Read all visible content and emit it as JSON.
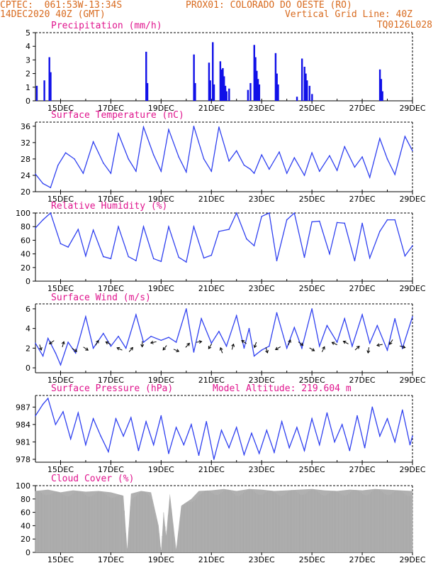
{
  "header": {
    "left_line1": "CPTEC:  061:53W-13:34S",
    "station": "PROX01: COLORADO DO OESTE (RO)",
    "left_line2": "14DEC2020 40Z (GMT)",
    "grid_note": "Vertical Grid Line: 40Z",
    "run_id": "TQ0126L028"
  },
  "colors": {
    "header": "#d86a1e",
    "title": "#e0158e",
    "bar": "#1010e8",
    "line": "#2f40f0",
    "cloud": "#b0b0b0"
  },
  "chart_data": [
    {
      "id": "precipitation",
      "type": "bar",
      "title": "Precipitation (mm/h)",
      "ylim": [
        0,
        5
      ],
      "yticks": [
        0,
        1,
        2,
        3,
        4,
        5
      ],
      "xlim": [
        14,
        29
      ],
      "xticks": [
        "15DEC",
        "17DEC",
        "19DEC",
        "21DEC",
        "23DEC",
        "25DEC",
        "27DEC",
        "29DEC"
      ],
      "series": [
        {
          "x": [
            14.05,
            14.35,
            14.55,
            14.6,
            18.4,
            18.45,
            20.3,
            20.35,
            20.9,
            20.95,
            21.05,
            21.1,
            21.35,
            21.4,
            21.45,
            21.5,
            21.55,
            21.6,
            21.7,
            22.45,
            22.55,
            22.7,
            22.75,
            22.8,
            22.85,
            22.9,
            23.55,
            23.6,
            23.65,
            24.4,
            24.6,
            24.7,
            24.75,
            24.8,
            24.9,
            25.0,
            27.7,
            27.75,
            27.8
          ],
          "values": [
            1.1,
            1.5,
            3.2,
            2.1,
            3.6,
            1.3,
            3.4,
            1.3,
            2.8,
            1.5,
            4.3,
            1.2,
            2.9,
            2.3,
            2.4,
            1.8,
            1.1,
            0.7,
            0.9,
            0.8,
            1.3,
            4.1,
            3.2,
            2.2,
            1.6,
            1.2,
            3.5,
            2.0,
            1.2,
            0.3,
            3.1,
            2.5,
            2.0,
            1.5,
            1.1,
            0.5,
            2.3,
            1.6,
            0.7
          ]
        }
      ]
    },
    {
      "id": "temperature",
      "type": "line",
      "title": "Surface Temperature (nC)",
      "ylim": [
        20,
        37
      ],
      "yticks": [
        20,
        24,
        28,
        32,
        36
      ],
      "xlim": [
        14,
        29
      ],
      "xticks": [
        "15DEC",
        "17DEC",
        "19DEC",
        "21DEC",
        "23DEC",
        "25DEC",
        "27DEC",
        "29DEC"
      ],
      "series": [
        {
          "x": [
            14.0,
            14.3,
            14.6,
            14.9,
            15.2,
            15.55,
            15.9,
            16.3,
            16.7,
            17.0,
            17.3,
            17.7,
            18.0,
            18.3,
            18.7,
            19.0,
            19.3,
            19.7,
            20.0,
            20.3,
            20.7,
            21.0,
            21.3,
            21.7,
            22.0,
            22.3,
            22.55,
            22.7,
            23.0,
            23.3,
            23.7,
            24.0,
            24.3,
            24.7,
            25.0,
            25.3,
            25.7,
            26.0,
            26.3,
            26.7,
            27.0,
            27.3,
            27.7,
            28.0,
            28.3,
            28.7,
            29.0
          ],
          "values": [
            24.3,
            22.0,
            21.0,
            26.5,
            29.5,
            28.0,
            24.5,
            32.2,
            27.0,
            24.5,
            34.2,
            28.0,
            25.0,
            35.8,
            29.0,
            25.0,
            35.2,
            28.5,
            24.8,
            36.0,
            28.0,
            25.0,
            35.8,
            27.5,
            30.0,
            26.5,
            25.5,
            24.5,
            29.0,
            25.5,
            29.7,
            24.5,
            28.3,
            24.0,
            29.5,
            25.0,
            28.8,
            25.2,
            31.0,
            26.0,
            28.5,
            23.5,
            33.0,
            28.0,
            24.2,
            33.5,
            30.0
          ]
        }
      ]
    },
    {
      "id": "humidity",
      "type": "line",
      "title": "Relative Humidity (%)",
      "ylim": [
        0,
        100
      ],
      "yticks": [
        0,
        20,
        40,
        60,
        80,
        100
      ],
      "xlim": [
        14,
        29
      ],
      "xticks": [
        "15DEC",
        "17DEC",
        "19DEC",
        "21DEC",
        "23DEC",
        "25DEC",
        "27DEC",
        "29DEC"
      ],
      "series": [
        {
          "x": [
            14.0,
            14.3,
            14.6,
            15.0,
            15.3,
            15.7,
            16.0,
            16.3,
            16.7,
            17.0,
            17.3,
            17.7,
            18.0,
            18.3,
            18.7,
            19.0,
            19.3,
            19.7,
            20.0,
            20.3,
            20.7,
            21.0,
            21.3,
            21.7,
            22.0,
            22.4,
            22.7,
            23.0,
            23.3,
            23.6,
            24.0,
            24.3,
            24.7,
            25.0,
            25.3,
            25.7,
            26.0,
            26.3,
            26.7,
            27.0,
            27.3,
            27.7,
            28.0,
            28.3,
            28.7,
            29.0
          ],
          "values": [
            78,
            90,
            100,
            55,
            50,
            76,
            37,
            75,
            36,
            33,
            80,
            36,
            30,
            80,
            33,
            29,
            80,
            35,
            28,
            80,
            34,
            38,
            73,
            76,
            100,
            62,
            52,
            95,
            100,
            30,
            90,
            100,
            35,
            87,
            88,
            40,
            86,
            85,
            30,
            85,
            34,
            73,
            90,
            90,
            37,
            52
          ]
        }
      ]
    },
    {
      "id": "wind",
      "type": "line",
      "title": "Surface Wind (m/s)",
      "ylim": [
        -0.5,
        6.5
      ],
      "yticks": [
        0,
        2,
        4,
        6
      ],
      "xlim": [
        14,
        29
      ],
      "xticks": [
        "15DEC",
        "17DEC",
        "19DEC",
        "21DEC",
        "23DEC",
        "25DEC",
        "27DEC",
        "29DEC"
      ],
      "series": [
        {
          "x": [
            14.0,
            14.3,
            14.5,
            14.8,
            15.0,
            15.3,
            15.6,
            16.0,
            16.3,
            16.7,
            17.0,
            17.3,
            17.6,
            18.0,
            18.3,
            18.6,
            19.0,
            19.3,
            19.6,
            20.0,
            20.3,
            20.6,
            21.0,
            21.3,
            21.6,
            22.0,
            22.3,
            22.5,
            22.7,
            23.0,
            23.3,
            23.6,
            24.0,
            24.3,
            24.6,
            25.0,
            25.3,
            25.6,
            26.0,
            26.3,
            26.6,
            27.0,
            27.3,
            27.6,
            28.0,
            28.3,
            28.6,
            29.0
          ],
          "values": [
            2.5,
            1.2,
            3.0,
            1.5,
            0.3,
            2.6,
            1.5,
            5.2,
            2.0,
            3.5,
            2.2,
            3.2,
            2.0,
            5.4,
            2.6,
            3.2,
            2.8,
            3.1,
            2.6,
            6.0,
            1.6,
            5.0,
            2.5,
            3.7,
            2.2,
            5.3,
            2.0,
            4.0,
            1.2,
            1.8,
            2.2,
            5.6,
            2.0,
            4.1,
            2.0,
            6.0,
            2.2,
            4.3,
            2.6,
            5.0,
            2.2,
            5.4,
            2.5,
            4.3,
            1.8,
            5.0,
            2.0,
            5.2
          ]
        }
      ],
      "arrows_y": 2.2
    },
    {
      "id": "pressure",
      "type": "line",
      "title": "Surface Pressure (hPa)",
      "subtitle": "Model Altitude: 219.604 m",
      "ylim": [
        977.5,
        989
      ],
      "yticks": [
        978,
        981,
        984,
        987
      ],
      "xlim": [
        14,
        29
      ],
      "xticks": [
        "15DEC",
        "17DEC",
        "19DEC",
        "21DEC",
        "23DEC",
        "25DEC",
        "27DEC",
        "29DEC"
      ],
      "series": [
        {
          "x": [
            14.0,
            14.3,
            14.5,
            14.8,
            15.1,
            15.4,
            15.7,
            16.0,
            16.3,
            16.6,
            16.9,
            17.2,
            17.5,
            17.8,
            18.1,
            18.4,
            18.7,
            19.0,
            19.3,
            19.6,
            19.9,
            20.2,
            20.5,
            20.8,
            21.1,
            21.4,
            21.7,
            22.0,
            22.3,
            22.6,
            22.9,
            23.2,
            23.5,
            23.8,
            24.1,
            24.4,
            24.7,
            25.0,
            25.3,
            25.6,
            25.9,
            26.2,
            26.5,
            26.8,
            27.1,
            27.4,
            27.7,
            28.0,
            28.3,
            28.6,
            28.9,
            29.0
          ],
          "values": [
            985.5,
            987.5,
            988.5,
            984.0,
            986.2,
            981.5,
            986.0,
            980.5,
            985.0,
            982.0,
            979.3,
            985.0,
            982.0,
            985.2,
            979.5,
            984.5,
            980.5,
            985.5,
            979.0,
            983.5,
            980.5,
            984.0,
            978.7,
            984.5,
            978.0,
            983.0,
            980.0,
            983.5,
            978.8,
            982.5,
            979.0,
            983.0,
            979.2,
            984.5,
            980.0,
            983.5,
            979.5,
            985.0,
            980.5,
            986.0,
            981.0,
            984.0,
            979.5,
            985.5,
            980.0,
            987.0,
            982.0,
            985.0,
            981.0,
            986.5,
            980.5,
            982.0
          ]
        }
      ]
    },
    {
      "id": "cloud",
      "type": "area",
      "title": "Cloud Cover (%)",
      "ylim": [
        0,
        100
      ],
      "yticks": [
        0,
        20,
        40,
        60,
        80,
        100
      ],
      "xlim": [
        14,
        29
      ],
      "xticks": [
        "15DEC",
        "17DEC",
        "19DEC",
        "21DEC",
        "23DEC",
        "25DEC",
        "27DEC",
        "29DEC"
      ],
      "series": [
        {
          "x": [
            14.0,
            14.5,
            15.0,
            15.5,
            16.0,
            16.5,
            17.0,
            17.5,
            17.65,
            17.8,
            18.2,
            18.6,
            18.9,
            19.0,
            19.1,
            19.2,
            19.35,
            19.6,
            19.8,
            20.2,
            20.5,
            21.0,
            21.5,
            22.0,
            22.5,
            23.0,
            23.5,
            24.0,
            24.5,
            25.0,
            25.5,
            26.0,
            26.5,
            27.0,
            27.5,
            28.0,
            28.5,
            29.0
          ],
          "values": [
            92,
            94,
            90,
            93,
            91,
            92,
            90,
            85,
            5,
            88,
            92,
            90,
            40,
            2,
            60,
            25,
            88,
            5,
            70,
            80,
            92,
            93,
            95,
            92,
            95,
            94,
            92,
            93,
            94,
            95,
            93,
            92,
            94,
            93,
            95,
            94,
            93,
            92
          ]
        }
      ]
    }
  ]
}
